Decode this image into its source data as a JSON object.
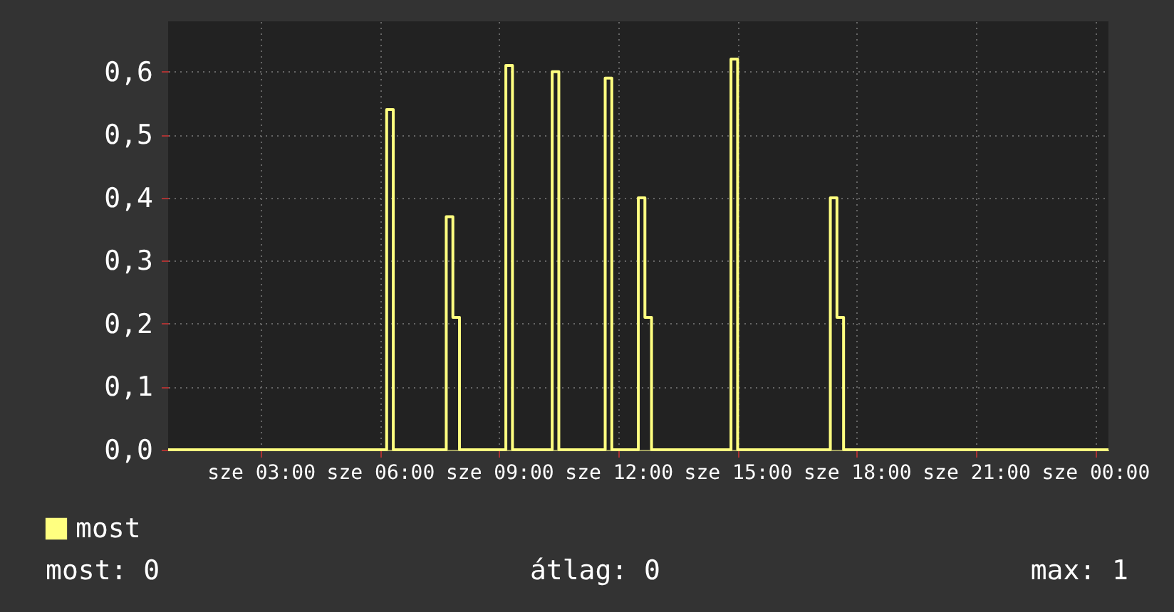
{
  "chart_data": {
    "type": "step",
    "legend": "bottom left",
    "grid": true,
    "line_style": "solid",
    "marker": "none",
    "categories": [
      null,
      null,
      null,
      null,
      null,
      null,
      null,
      null,
      null,
      null,
      null,
      null,
      null,
      null,
      "sze 03:00",
      null,
      null,
      null,
      null,
      null,
      null,
      null,
      null,
      null,
      null,
      null,
      null,
      null,
      null,
      null,
      null,
      null,
      "sze 06:00",
      null,
      null,
      null,
      null,
      null,
      null,
      null,
      null,
      null,
      null,
      null,
      null,
      null,
      null,
      null,
      null,
      null,
      "sze 09:00",
      null,
      null,
      null,
      null,
      null,
      null,
      null,
      null,
      null,
      null,
      null,
      null,
      null,
      null,
      null,
      null,
      null,
      "sze 12:00",
      null,
      null,
      null,
      null,
      null,
      null,
      null,
      null,
      null,
      null,
      null,
      null,
      null,
      null,
      null,
      null,
      null,
      "sze 15:00",
      null,
      null,
      null,
      null,
      null,
      null,
      null,
      null,
      null,
      null,
      null,
      null,
      null,
      null,
      null,
      null,
      null,
      "sze 18:00",
      null,
      null,
      null,
      null,
      null,
      null,
      null,
      null,
      null,
      null,
      null,
      null,
      null,
      null,
      null,
      null,
      null,
      "sze 21:00",
      null,
      null,
      null,
      null,
      null,
      null,
      null,
      null,
      null,
      null,
      null,
      null,
      null,
      null,
      null,
      null,
      null,
      "sze 00:00",
      null,
      null
    ],
    "ylim": [
      0,
      0.68
    ],
    "yticks": [
      {
        "value": 0,
        "label": "0,0"
      },
      {
        "value": 0.1,
        "label": "0,1"
      },
      {
        "value": 0.2,
        "label": "0,2"
      },
      {
        "value": 0.3,
        "label": "0,3"
      },
      {
        "value": 0.4,
        "label": "0,4"
      },
      {
        "value": 0.5,
        "label": "0,5"
      },
      {
        "value": 0.6,
        "label": "0,6"
      }
    ],
    "annotations": [
      "most: 0",
      "átlag: 0",
      "max: 1"
    ],
    "series": [
      {
        "name": "most",
        "color": "#ffff80",
        "values": [
          0,
          0,
          0,
          0,
          0,
          0,
          0,
          0,
          0,
          0,
          0,
          0,
          0,
          0,
          0,
          0,
          0,
          0,
          0,
          0,
          0,
          0,
          0,
          0,
          0,
          0,
          0,
          0,
          0,
          0,
          0,
          0,
          0,
          0.54,
          0,
          0,
          0,
          0,
          0,
          0,
          0,
          0,
          0.37,
          0.21,
          0,
          0,
          0,
          0,
          0,
          0,
          0,
          0.61,
          0,
          0,
          0,
          0,
          0,
          0,
          0.6,
          0,
          0,
          0,
          0,
          0,
          0,
          0,
          0.59,
          0,
          0,
          0,
          0,
          0.4,
          0.21,
          0,
          0,
          0,
          0,
          0,
          0,
          0,
          0,
          0,
          0,
          0,
          0,
          0.62,
          0,
          0,
          0,
          0,
          0,
          0,
          0,
          0,
          0,
          0,
          0,
          0,
          0,
          0,
          0.4,
          0.21,
          0,
          0,
          0,
          0,
          0,
          0,
          0,
          0,
          0,
          0,
          0,
          0,
          0,
          0,
          0,
          0,
          0,
          0,
          0,
          0,
          0,
          0,
          0,
          0,
          0,
          0,
          0,
          0,
          0,
          0,
          0,
          0,
          0,
          0,
          0,
          0,
          0,
          0,
          0,
          0,
          0
        ]
      }
    ]
  }
}
